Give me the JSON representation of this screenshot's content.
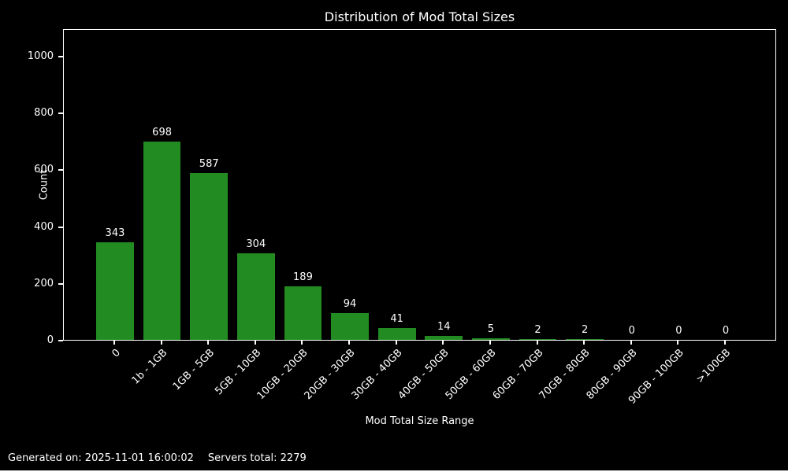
{
  "chart_data": {
    "type": "bar",
    "title": "Distribution of Mod Total Sizes",
    "xlabel": "Mod Total Size Range",
    "ylabel": "Count",
    "categories": [
      "0",
      "1b - 1GB",
      "1GB - 5GB",
      "5GB - 10GB",
      "10GB - 20GB",
      "20GB - 30GB",
      "30GB - 40GB",
      "40GB - 50GB",
      "50GB - 60GB",
      "60GB - 70GB",
      "70GB - 80GB",
      "80GB - 90GB",
      "90GB - 100GB",
      ">100GB"
    ],
    "values": [
      343,
      698,
      587,
      304,
      189,
      94,
      41,
      14,
      5,
      2,
      2,
      0,
      0,
      0
    ],
    "yticks": [
      0,
      200,
      400,
      600,
      800,
      1000
    ],
    "ylim": [
      0,
      1097
    ],
    "bar_color": "#228B22",
    "background_color": "#000000",
    "text_color": "#ffffff",
    "grid": false,
    "legend_position": "none",
    "bar_labels_shown": true
  },
  "footer": {
    "generated": "Generated on: 2025-11-01 16:00:02",
    "servers": "Servers total: 2279"
  }
}
